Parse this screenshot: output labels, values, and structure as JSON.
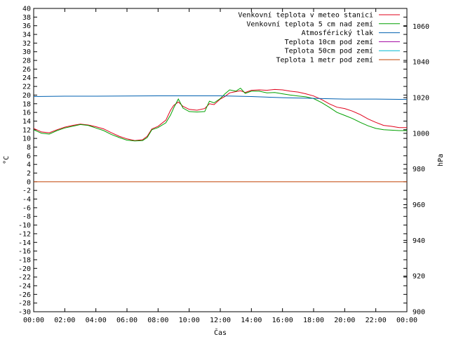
{
  "chart_data": {
    "type": "line",
    "xlabel": "Čas",
    "ylabel_left": "°C",
    "ylabel_right": "hPa",
    "x_ticks": [
      "00:00",
      "02:00",
      "04:00",
      "06:00",
      "08:00",
      "10:00",
      "12:00",
      "14:00",
      "16:00",
      "18:00",
      "20:00",
      "22:00",
      "00:00"
    ],
    "xlim": [
      0,
      24
    ],
    "ylim_left": [
      -30,
      40
    ],
    "ylim_right": [
      900,
      1070
    ],
    "y_left_ticks": [
      40,
      38,
      36,
      34,
      32,
      30,
      28,
      26,
      24,
      22,
      20,
      18,
      16,
      14,
      12,
      10,
      8,
      6,
      4,
      2,
      0,
      -2,
      -4,
      -6,
      -8,
      -10,
      -12,
      -14,
      -16,
      -18,
      -20,
      -22,
      -24,
      -26,
      -28,
      -30
    ],
    "y_right_ticks": [
      1060,
      1040,
      1020,
      1000,
      980,
      960,
      940,
      920,
      900
    ],
    "grid": false,
    "legend_position": "top-right",
    "series": [
      {
        "name": "Venkovní teplota v meteo stanici",
        "axis": "left",
        "color": "#e0001a",
        "x": [
          0,
          0.5,
          1,
          1.5,
          2,
          2.5,
          3,
          3.5,
          4,
          4.5,
          5,
          5.5,
          6,
          6.5,
          7,
          7.3,
          7.6,
          8,
          8.5,
          8.8,
          9,
          9.3,
          9.6,
          10,
          10.5,
          11,
          11.3,
          11.6,
          12,
          12.3,
          12.6,
          13,
          13.3,
          13.6,
          14,
          14.5,
          15,
          15.5,
          16,
          16.5,
          17,
          17.5,
          18,
          18.5,
          19,
          19.5,
          20,
          20.5,
          21,
          21.5,
          22,
          22.5,
          23,
          23.5,
          24
        ],
        "y": [
          12.3,
          11.5,
          11.3,
          12,
          12.6,
          13,
          13.3,
          13.1,
          12.7,
          12.2,
          11.3,
          10.5,
          9.9,
          9.5,
          9.7,
          10.5,
          12.2,
          12.8,
          14.2,
          16.5,
          17.6,
          18.4,
          17.4,
          16.7,
          16.5,
          16.9,
          18,
          17.8,
          19.1,
          19.7,
          20.5,
          20.8,
          21,
          20.6,
          21.1,
          21.2,
          21.1,
          21.3,
          21.2,
          20.9,
          20.7,
          20.3,
          19.8,
          19,
          18,
          17.2,
          16.9,
          16.3,
          15.5,
          14.5,
          13.7,
          13,
          12.8,
          12.5,
          12.5
        ]
      },
      {
        "name": "Venkovní teplota 5 cm nad zemí",
        "axis": "left",
        "color": "#00a000",
        "x": [
          0,
          0.5,
          1,
          1.5,
          2,
          2.5,
          3,
          3.5,
          4,
          4.5,
          5,
          5.5,
          6,
          6.5,
          7,
          7.3,
          7.6,
          8,
          8.5,
          8.8,
          9,
          9.3,
          9.6,
          10,
          10.5,
          11,
          11.3,
          11.6,
          12,
          12.3,
          12.6,
          13,
          13.3,
          13.6,
          14,
          14.5,
          15,
          15.5,
          16,
          16.5,
          17,
          17.5,
          18,
          18.5,
          19,
          19.5,
          20,
          20.5,
          21,
          21.5,
          22,
          22.5,
          23,
          23.5,
          24
        ],
        "y": [
          12,
          11.2,
          11,
          11.8,
          12.4,
          12.8,
          13.2,
          13,
          12.4,
          11.8,
          10.9,
          10.2,
          9.6,
          9.4,
          9.5,
          10.2,
          12,
          12.5,
          13.6,
          15.4,
          17,
          19.1,
          17,
          16.2,
          16.1,
          16.2,
          18.6,
          18.2,
          19.2,
          20.3,
          21.2,
          20.9,
          21.6,
          20.4,
          20.9,
          20.9,
          20.5,
          20.6,
          20.3,
          20,
          19.8,
          19.6,
          19.2,
          18.3,
          17.2,
          16,
          15.3,
          14.6,
          13.7,
          12.9,
          12.3,
          12,
          11.9,
          11.8,
          11.8
        ]
      },
      {
        "name": "Atmosférický tlak",
        "axis": "right",
        "color": "#0060b0",
        "x": [
          0,
          2,
          4,
          6,
          8,
          10,
          12,
          14,
          16,
          18,
          20,
          22,
          24
        ],
        "y": [
          1020.6,
          1020.8,
          1020.8,
          1020.9,
          1021,
          1021,
          1021,
          1020.6,
          1020,
          1019.6,
          1019.2,
          1019.2,
          1019
        ]
      },
      {
        "name": "Teplota 10cm pod zemí",
        "axis": "left",
        "color": "#a000a0",
        "x": [],
        "y": []
      },
      {
        "name": "Teplota 50cm pod zemí",
        "axis": "left",
        "color": "#00b8d0",
        "x": [],
        "y": []
      },
      {
        "name": "Teplota 1 metr pod zemí",
        "axis": "left",
        "color": "#c04000",
        "x": [
          0,
          24
        ],
        "y": [
          0,
          0
        ]
      }
    ]
  }
}
